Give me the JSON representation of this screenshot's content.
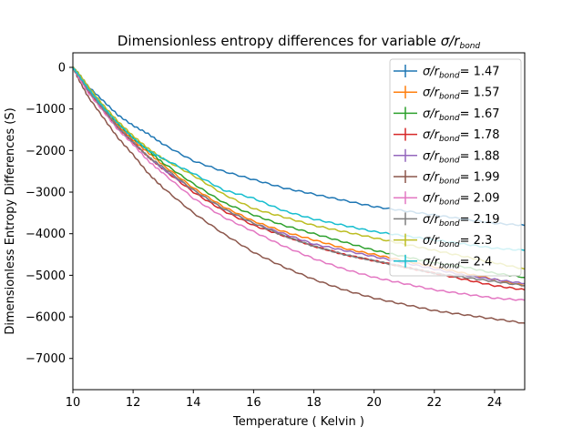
{
  "chart_data": {
    "type": "line",
    "title": "Dimensionless entropy differences for variable σ/r_bond",
    "title_main": "Dimensionless entropy differences for variable ",
    "title_sigma": "σ/r",
    "title_sub": "bond",
    "xlabel": "Temperature ( Kelvin )",
    "ylabel": "Dimensionless Entropy Differences (S)",
    "xlim": [
      10,
      25
    ],
    "ylim": [
      -7750,
      350
    ],
    "xticks": [
      10,
      12,
      14,
      16,
      18,
      20,
      22,
      24
    ],
    "yticks": [
      0,
      -1000,
      -2000,
      -3000,
      -4000,
      -5000,
      -6000,
      -7000
    ],
    "grid": false,
    "legend_position": "top-right",
    "legend_prefix": "σ/r",
    "legend_sub": "bond",
    "x": [
      10,
      10.2,
      10.5,
      11,
      11.5,
      12,
      12.5,
      13,
      14,
      15,
      16,
      17,
      18,
      19,
      20,
      21,
      22,
      23,
      24,
      25
    ],
    "series": [
      {
        "name": "1.47",
        "color": "#1f77b4",
        "values": [
          0,
          -150,
          -450,
          -800,
          -1150,
          -1400,
          -1600,
          -1850,
          -2250,
          -2500,
          -2700,
          -2900,
          -3050,
          -3200,
          -3350,
          -3450,
          -3550,
          -3650,
          -3750,
          -3800
        ]
      },
      {
        "name": "1.57",
        "color": "#ff7f0e",
        "values": [
          0,
          -200,
          -550,
          -1000,
          -1400,
          -1750,
          -2050,
          -2350,
          -2900,
          -3350,
          -3700,
          -3950,
          -4150,
          -4350,
          -4500,
          -4650,
          -4800,
          -4950,
          -5100,
          -5250
        ]
      },
      {
        "name": "1.67",
        "color": "#2ca02c",
        "values": [
          0,
          -200,
          -500,
          -950,
          -1350,
          -1700,
          -2000,
          -2300,
          -2800,
          -3250,
          -3550,
          -3800,
          -4000,
          -4200,
          -4400,
          -4550,
          -4700,
          -4800,
          -4950,
          -5050
        ]
      },
      {
        "name": "1.78",
        "color": "#d62728",
        "values": [
          0,
          -200,
          -550,
          -1000,
          -1450,
          -1800,
          -2150,
          -2450,
          -3000,
          -3450,
          -3800,
          -4050,
          -4300,
          -4500,
          -4650,
          -4800,
          -4950,
          -5100,
          -5250,
          -5350
        ]
      },
      {
        "name": "1.88",
        "color": "#9467bd",
        "values": [
          0,
          -200,
          -550,
          -1000,
          -1450,
          -1800,
          -2150,
          -2450,
          -2950,
          -3400,
          -3750,
          -4000,
          -4250,
          -4400,
          -4550,
          -4700,
          -4850,
          -5000,
          -5100,
          -5200
        ]
      },
      {
        "name": "1.99",
        "color": "#8c564b",
        "values": [
          0,
          -300,
          -700,
          -1200,
          -1700,
          -2100,
          -2550,
          -2900,
          -3500,
          -4000,
          -4450,
          -4800,
          -5100,
          -5350,
          -5550,
          -5700,
          -5850,
          -5950,
          -6050,
          -6150
        ]
      },
      {
        "name": "2.09",
        "color": "#e377c2",
        "values": [
          0,
          -250,
          -600,
          -1050,
          -1500,
          -1850,
          -2250,
          -2550,
          -3150,
          -3600,
          -3950,
          -4300,
          -4600,
          -4850,
          -5050,
          -5200,
          -5350,
          -5450,
          -5550,
          -5600
        ]
      },
      {
        "name": "2.19",
        "color": "#7f7f7f",
        "values": [
          0,
          -200,
          -550,
          -1000,
          -1450,
          -1800,
          -2150,
          -2400,
          -2950,
          -3400,
          -3750,
          -4050,
          -4300,
          -4500,
          -4650,
          -4800,
          -4950,
          -5050,
          -5150,
          -5250
        ]
      },
      {
        "name": "2.3",
        "color": "#bcbd22",
        "values": [
          0,
          -150,
          -450,
          -900,
          -1300,
          -1650,
          -1950,
          -2200,
          -2600,
          -3050,
          -3400,
          -3600,
          -3800,
          -3950,
          -4100,
          -4250,
          -4400,
          -4550,
          -4700,
          -4850
        ]
      },
      {
        "name": "2.4",
        "color": "#17becf",
        "values": [
          0,
          -200,
          -500,
          -950,
          -1350,
          -1700,
          -2000,
          -2200,
          -2550,
          -2950,
          -3150,
          -3450,
          -3650,
          -3800,
          -3950,
          -4050,
          -4150,
          -4250,
          -4350,
          -4400
        ]
      }
    ]
  }
}
